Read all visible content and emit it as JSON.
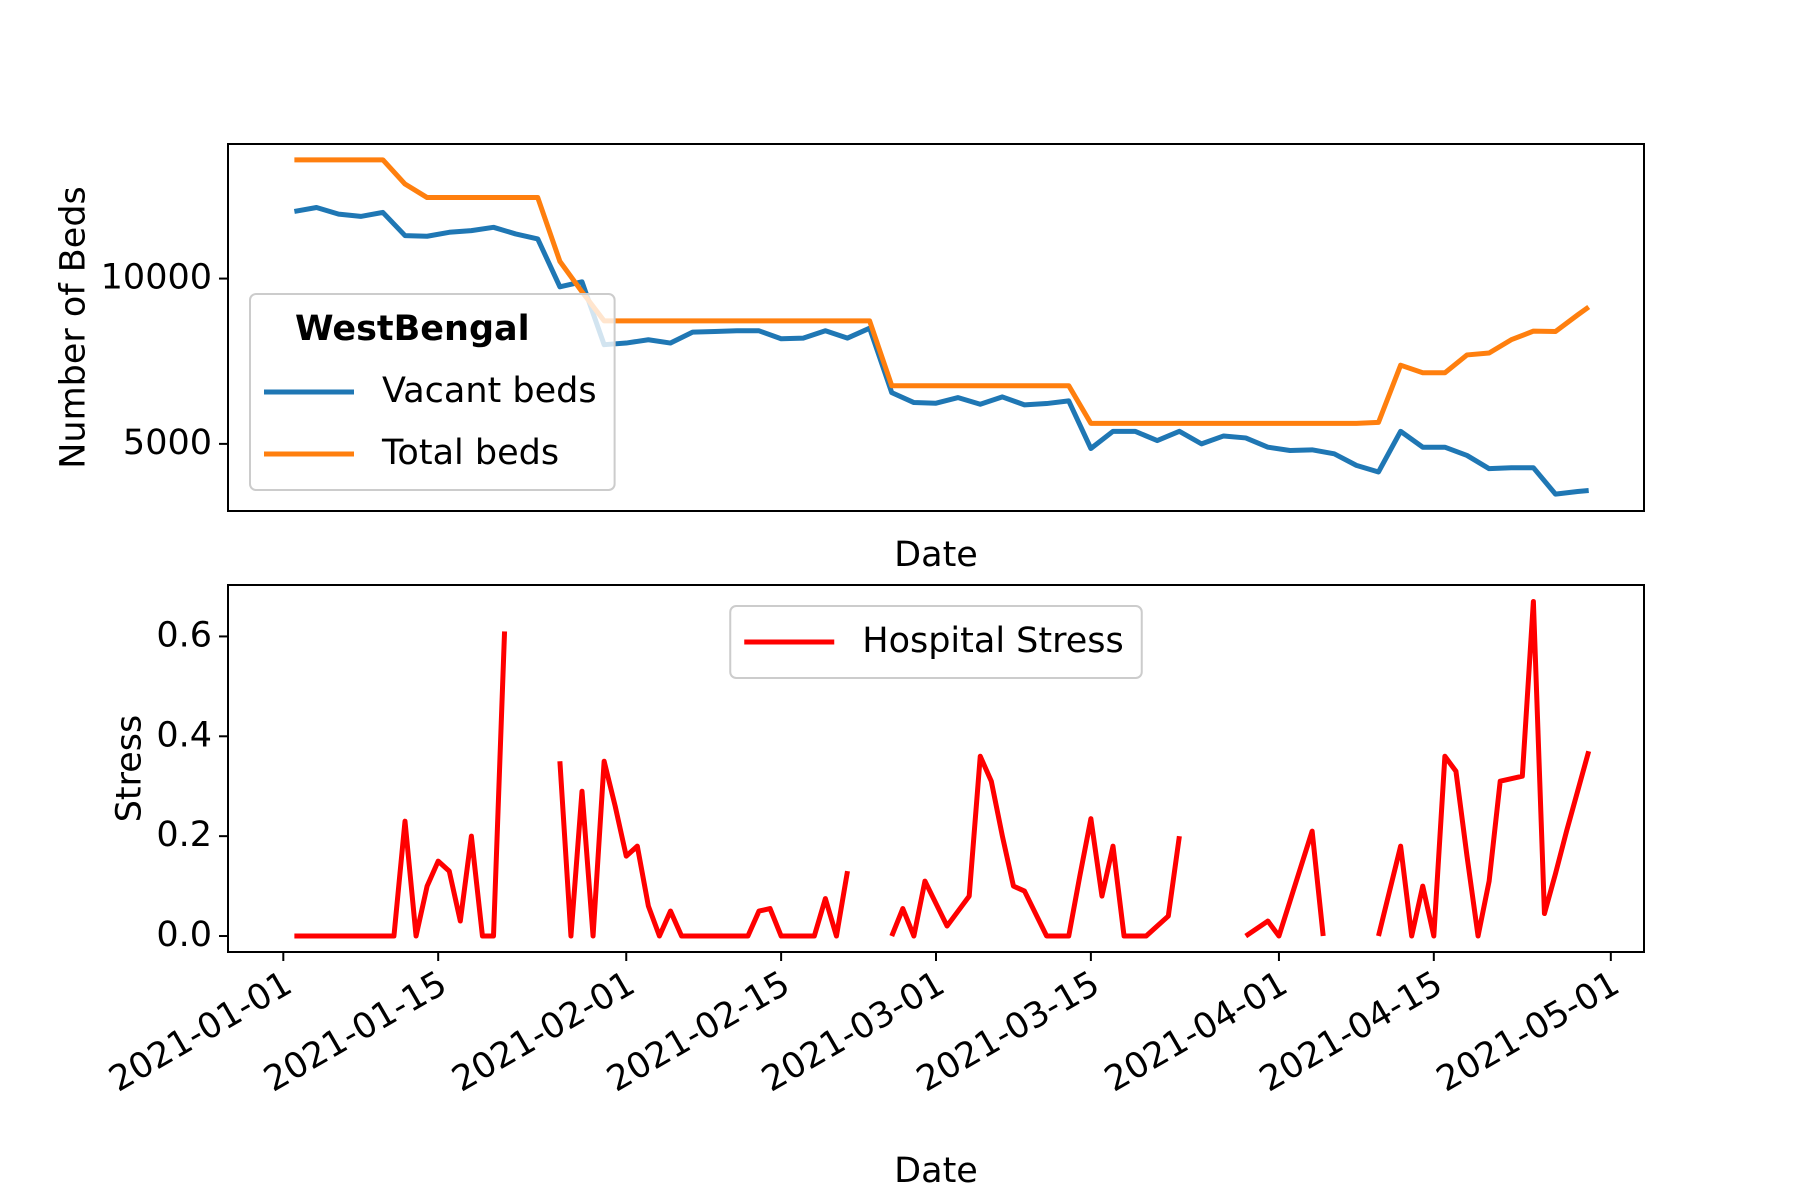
{
  "chart_data": [
    {
      "type": "line",
      "xlabel": "Date",
      "ylabel": "Number of Beds",
      "legend_title": "WestBengal",
      "legend": "lower left",
      "x": [
        "2021-01-02",
        "2021-01-04",
        "2021-01-06",
        "2021-01-08",
        "2021-01-10",
        "2021-01-12",
        "2021-01-14",
        "2021-01-16",
        "2021-01-18",
        "2021-01-20",
        "2021-01-22",
        "2021-01-24",
        "2021-01-26",
        "2021-01-28",
        "2021-01-30",
        "2021-02-01",
        "2021-02-03",
        "2021-02-05",
        "2021-02-07",
        "2021-02-09",
        "2021-02-11",
        "2021-02-13",
        "2021-02-15",
        "2021-02-17",
        "2021-02-19",
        "2021-02-21",
        "2021-02-23",
        "2021-02-25",
        "2021-02-27",
        "2021-03-01",
        "2021-03-03",
        "2021-03-05",
        "2021-03-07",
        "2021-03-09",
        "2021-03-11",
        "2021-03-13",
        "2021-03-15",
        "2021-03-17",
        "2021-03-19",
        "2021-03-21",
        "2021-03-23",
        "2021-03-25",
        "2021-03-27",
        "2021-03-29",
        "2021-03-31",
        "2021-04-02",
        "2021-04-04",
        "2021-04-06",
        "2021-04-08",
        "2021-04-10",
        "2021-04-12",
        "2021-04-14",
        "2021-04-16",
        "2021-04-18",
        "2021-04-20",
        "2021-04-22",
        "2021-04-24",
        "2021-04-26",
        "2021-04-28",
        "2021-04-29"
      ],
      "series": [
        {
          "name": "Vacant beds",
          "color": "#1f77b4",
          "values": [
            12030,
            12150,
            11950,
            11880,
            12000,
            11300,
            11280,
            11400,
            11450,
            11550,
            11350,
            11200,
            9750,
            9900,
            8000,
            8050,
            8150,
            8050,
            8380,
            8400,
            8420,
            8420,
            8180,
            8200,
            8420,
            8200,
            8500,
            6550,
            6250,
            6230,
            6400,
            6200,
            6420,
            6180,
            6220,
            6300,
            4860,
            5380,
            5380,
            5100,
            5380,
            5000,
            5240,
            5180,
            4900,
            4800,
            4820,
            4700,
            4350,
            4150,
            5380,
            4900,
            4900,
            4650,
            4250,
            4280,
            4280,
            3480,
            3560,
            3590
          ]
        },
        {
          "name": "Total beds",
          "color": "#ff7f0e",
          "values": [
            13590,
            13590,
            13590,
            13590,
            13590,
            12860,
            12450,
            12450,
            12450,
            12450,
            12450,
            12450,
            10520,
            9600,
            8720,
            8720,
            8720,
            8720,
            8720,
            8720,
            8720,
            8720,
            8720,
            8720,
            8720,
            8720,
            8720,
            6760,
            6760,
            6760,
            6760,
            6760,
            6760,
            6760,
            6760,
            6760,
            5620,
            5620,
            5620,
            5620,
            5620,
            5620,
            5620,
            5620,
            5620,
            5620,
            5620,
            5620,
            5620,
            5650,
            7380,
            7150,
            7150,
            7690,
            7750,
            8150,
            8410,
            8400,
            8900,
            9140
          ]
        }
      ],
      "xlim": [
        "2020-12-27",
        "2021-05-04"
      ],
      "ylim": [
        2970,
        14070
      ],
      "yticks": [
        5000,
        10000
      ]
    },
    {
      "type": "line",
      "xlabel": "Date",
      "ylabel": "Stress",
      "legend": "upper center",
      "x": [
        "2021-01-02",
        "2021-01-03",
        "2021-01-04",
        "2021-01-05",
        "2021-01-06",
        "2021-01-07",
        "2021-01-08",
        "2021-01-09",
        "2021-01-10",
        "2021-01-11",
        "2021-01-12",
        "2021-01-13",
        "2021-01-14",
        "2021-01-15",
        "2021-01-16",
        "2021-01-17",
        "2021-01-18",
        "2021-01-19",
        "2021-01-20",
        "2021-01-21",
        "2021-01-22",
        "2021-01-23",
        "2021-01-24",
        "2021-01-25",
        "2021-01-26",
        "2021-01-27",
        "2021-01-28",
        "2021-01-29",
        "2021-01-30",
        "2021-01-31",
        "2021-02-01",
        "2021-02-02",
        "2021-02-03",
        "2021-02-04",
        "2021-02-05",
        "2021-02-06",
        "2021-02-07",
        "2021-02-08",
        "2021-02-09",
        "2021-02-10",
        "2021-02-11",
        "2021-02-12",
        "2021-02-13",
        "2021-02-14",
        "2021-02-15",
        "2021-02-16",
        "2021-02-17",
        "2021-02-18",
        "2021-02-19",
        "2021-02-20",
        "2021-02-21",
        "2021-02-22",
        "2021-02-23",
        "2021-02-24",
        "2021-02-25",
        "2021-02-26",
        "2021-02-27",
        "2021-02-28",
        "2021-03-01",
        "2021-03-02",
        "2021-03-03",
        "2021-03-04",
        "2021-03-05",
        "2021-03-06",
        "2021-03-07",
        "2021-03-08",
        "2021-03-09",
        "2021-03-10",
        "2021-03-11",
        "2021-03-12",
        "2021-03-13",
        "2021-03-14",
        "2021-03-15",
        "2021-03-16",
        "2021-03-17",
        "2021-03-18",
        "2021-03-19",
        "2021-03-20",
        "2021-03-21",
        "2021-03-22",
        "2021-03-23",
        "2021-03-24",
        "2021-03-25",
        "2021-03-26",
        "2021-03-27",
        "2021-03-28",
        "2021-03-29",
        "2021-03-30",
        "2021-03-31",
        "2021-04-01",
        "2021-04-02",
        "2021-04-03",
        "2021-04-04",
        "2021-04-05",
        "2021-04-06",
        "2021-04-07",
        "2021-04-08",
        "2021-04-09",
        "2021-04-10",
        "2021-04-11",
        "2021-04-12",
        "2021-04-13",
        "2021-04-14",
        "2021-04-15",
        "2021-04-16",
        "2021-04-17",
        "2021-04-18",
        "2021-04-19",
        "2021-04-20",
        "2021-04-21",
        "2021-04-22",
        "2021-04-23",
        "2021-04-24",
        "2021-04-25",
        "2021-04-26",
        "2021-04-27",
        "2021-04-28",
        "2021-04-29"
      ],
      "series": [
        {
          "name": "Hospital Stress",
          "color": "#ff0000",
          "values": [
            0,
            0,
            0,
            0,
            0,
            0,
            0,
            0,
            0,
            0,
            0.23,
            0,
            0.1,
            0.15,
            0.13,
            0.03,
            0.2,
            0,
            0,
            0.61,
            null,
            null,
            null,
            null,
            0.35,
            0,
            0.29,
            0,
            0.35,
            0.26,
            0.16,
            0.18,
            0.06,
            0,
            0.05,
            0,
            0,
            0,
            0,
            0,
            0,
            0,
            0.05,
            0.055,
            0,
            0,
            0,
            0,
            0.075,
            0,
            0.13,
            null,
            null,
            null,
            0,
            0.055,
            0,
            0.11,
            0.065,
            0.02,
            0.05,
            0.08,
            0.36,
            0.31,
            0.2,
            0.1,
            0.09,
            0.045,
            0,
            0,
            0,
            0.12,
            0.235,
            0.08,
            0.18,
            0,
            0,
            0,
            0.02,
            0.04,
            0.2,
            null,
            null,
            null,
            null,
            null,
            0,
            0.015,
            0.03,
            0,
            0.07,
            0.14,
            0.21,
            0,
            null,
            null,
            null,
            null,
            0,
            0.09,
            0.18,
            0,
            0.1,
            0,
            0.36,
            0.33,
            0.16,
            0,
            0.11,
            0.31,
            0.315,
            0.32,
            0.67,
            0.045,
            0.125,
            0.21,
            0.29,
            0.37
          ]
        }
      ],
      "xlim": [
        "2020-12-27",
        "2021-05-04"
      ],
      "ylim": [
        -0.032,
        0.703
      ],
      "yticks": [
        {
          "value": 0,
          "label": "0.0"
        },
        0.2,
        0.4,
        0.6
      ],
      "xticks": [
        "2021-01-01",
        "2021-01-15",
        "2021-02-01",
        "2021-02-15",
        "2021-03-01",
        "2021-03-15",
        "2021-04-01",
        "2021-04-15",
        "2021-05-01"
      ]
    }
  ]
}
